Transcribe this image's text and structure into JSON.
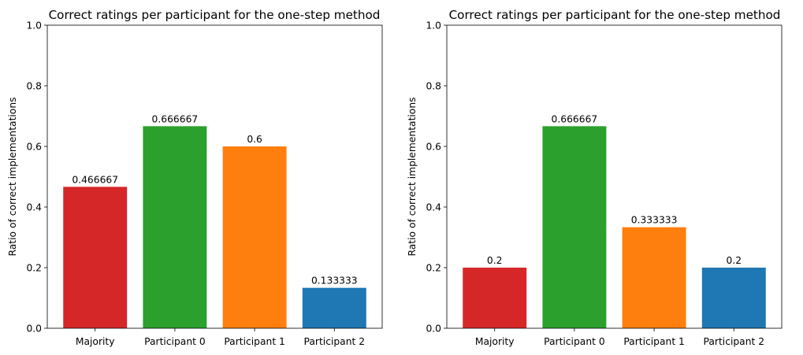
{
  "chart_data": [
    {
      "type": "bar",
      "title": "Correct ratings per participant for the one-step method",
      "xlabel": "",
      "ylabel": "Ratio of correct implementations",
      "ylim": [
        0,
        1.0
      ],
      "yticks": [
        "0.0",
        "0.2",
        "0.4",
        "0.6",
        "0.8",
        "1.0"
      ],
      "categories": [
        "Majority",
        "Participant 0",
        "Participant 1",
        "Participant 2"
      ],
      "values": [
        0.466667,
        0.666667,
        0.6,
        0.133333
      ],
      "data_labels": [
        "0.466667",
        "0.666667",
        "0.6",
        "0.133333"
      ],
      "colors": [
        "#d62728",
        "#2ca02c",
        "#ff7f0e",
        "#1f77b4"
      ],
      "grid": false
    },
    {
      "type": "bar",
      "title": "Correct ratings per participant for the one-step method",
      "xlabel": "",
      "ylabel": "Ratio of correct implementations",
      "ylim": [
        0,
        1.0
      ],
      "yticks": [
        "0.0",
        "0.2",
        "0.4",
        "0.6",
        "0.8",
        "1.0"
      ],
      "categories": [
        "Majority",
        "Participant 0",
        "Participant 1",
        "Participant 2"
      ],
      "values": [
        0.2,
        0.666667,
        0.333333,
        0.2
      ],
      "data_labels": [
        "0.2",
        "0.666667",
        "0.333333",
        "0.2"
      ],
      "colors": [
        "#d62728",
        "#2ca02c",
        "#ff7f0e",
        "#1f77b4"
      ],
      "grid": false
    }
  ]
}
